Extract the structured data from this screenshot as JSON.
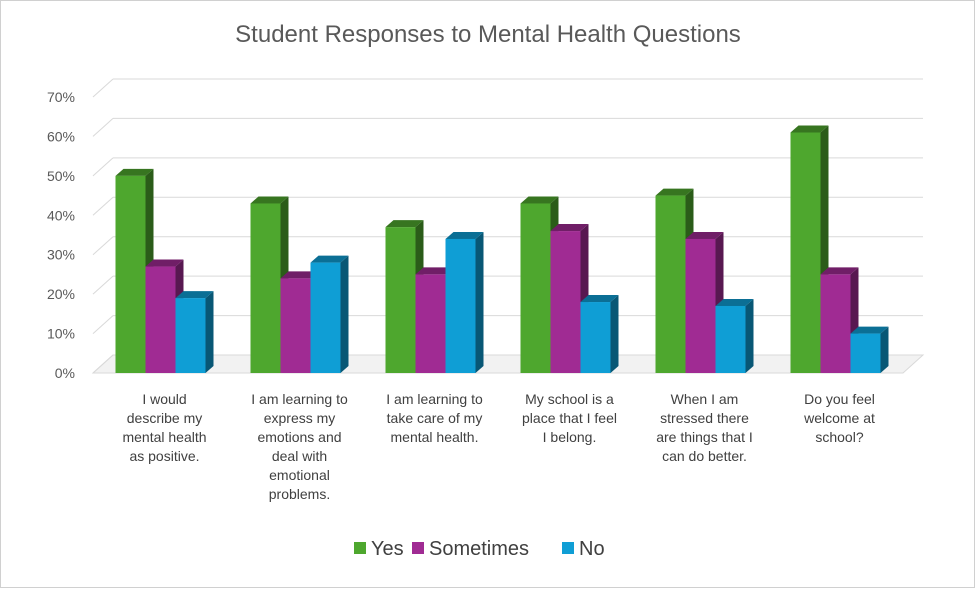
{
  "chart_data": {
    "type": "bar",
    "title": "Student Responses to Mental Health Questions",
    "categories": [
      [
        "I would",
        "describe my",
        "mental health",
        "as positive."
      ],
      [
        "I am learning to",
        "express my",
        "emotions and",
        "deal with",
        "emotional",
        "problems."
      ],
      [
        "I am learning to",
        "take care of my",
        "mental health."
      ],
      [
        "My school is a",
        "place that I feel",
        "I belong."
      ],
      [
        "When I am",
        "stressed there",
        "are things that I",
        "can do better."
      ],
      [
        "Do you feel",
        "welcome at",
        "school?"
      ]
    ],
    "series": [
      {
        "name": "Yes",
        "color": "#4ea72e",
        "values": [
          50,
          43,
          37,
          43,
          45,
          61
        ]
      },
      {
        "name": "Sometimes",
        "color": "#a02b93",
        "values": [
          27,
          24,
          25,
          36,
          34,
          25
        ]
      },
      {
        "name": "No",
        "color": "#0f9ed5",
        "values": [
          19,
          28,
          34,
          18,
          17,
          10
        ]
      }
    ],
    "ylim": [
      0,
      70
    ],
    "yticks": [
      "0%",
      "10%",
      "20%",
      "30%",
      "40%",
      "50%",
      "60%",
      "70%"
    ],
    "grid": true,
    "legend": "bottom",
    "xlabel": "",
    "ylabel": ""
  }
}
